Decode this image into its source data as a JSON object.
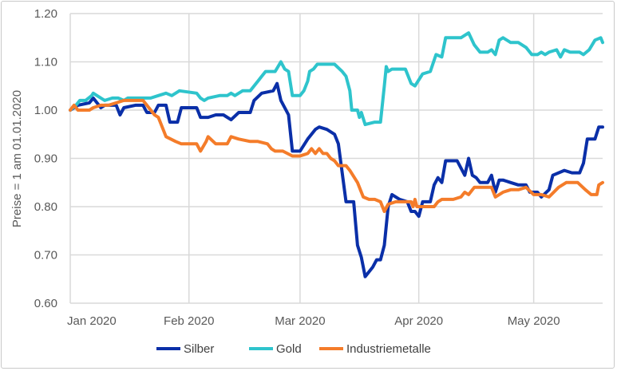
{
  "chart_data": {
    "type": "line",
    "title": "",
    "xlabel": "",
    "ylabel": "Preise = 1 am 01.01.2020",
    "x_unit": "days since 2020-01-01",
    "xlim": [
      0,
      139
    ],
    "ylim": [
      0.6,
      1.2
    ],
    "yticks": [
      0.6,
      0.7,
      0.8,
      0.9,
      1.0,
      1.1,
      1.2
    ],
    "ytick_labels": [
      "0.60",
      "0.70",
      "0.80",
      "0.90",
      "1.00",
      "1.10",
      "1.20"
    ],
    "xticks": [
      0,
      31,
      60,
      91,
      121
    ],
    "xtick_labels": [
      "Jan 2020",
      "Feb 2020",
      "Mar 2020",
      "Apr 2020",
      "May 2020"
    ],
    "grid": true,
    "legend_position": "bottom",
    "series": [
      {
        "name": "Silber",
        "color": "#0a2fa8",
        "x": [
          0,
          2,
          5,
          6,
          8,
          9,
          12,
          13,
          14,
          17,
          19,
          20,
          22,
          23,
          25,
          26,
          28,
          29,
          33,
          34,
          36,
          38,
          40,
          42,
          44,
          47,
          48,
          50,
          53,
          54,
          55,
          57,
          58,
          60,
          62,
          64,
          65,
          67,
          69,
          70,
          72,
          74,
          75,
          76,
          77,
          79,
          80,
          81,
          82,
          83,
          84,
          86,
          88,
          89,
          90,
          91,
          92,
          94,
          95,
          96,
          97,
          98,
          101,
          103,
          104,
          105,
          106,
          107,
          109,
          110,
          111,
          112,
          113,
          115,
          117,
          119,
          120,
          122,
          123,
          125,
          126,
          129,
          131,
          133,
          134,
          135,
          137,
          138,
          139
        ],
        "y": [
          1.0,
          1.01,
          1.015,
          1.025,
          1.005,
          1.01,
          1.01,
          0.99,
          1.005,
          1.01,
          1.01,
          0.995,
          0.995,
          1.01,
          1.01,
          0.975,
          0.975,
          1.005,
          1.005,
          0.985,
          0.985,
          0.99,
          0.99,
          0.98,
          0.995,
          0.995,
          1.02,
          1.035,
          1.04,
          1.055,
          1.02,
          0.99,
          0.915,
          0.915,
          0.94,
          0.96,
          0.965,
          0.96,
          0.95,
          0.93,
          0.81,
          0.81,
          0.72,
          0.695,
          0.655,
          0.675,
          0.69,
          0.69,
          0.72,
          0.8,
          0.825,
          0.815,
          0.81,
          0.79,
          0.79,
          0.78,
          0.81,
          0.81,
          0.845,
          0.86,
          0.85,
          0.895,
          0.895,
          0.865,
          0.9,
          0.865,
          0.86,
          0.85,
          0.85,
          0.865,
          0.83,
          0.855,
          0.855,
          0.85,
          0.845,
          0.845,
          0.83,
          0.83,
          0.82,
          0.835,
          0.865,
          0.875,
          0.87,
          0.87,
          0.89,
          0.94,
          0.94,
          0.965,
          0.965
        ]
      },
      {
        "name": "Gold",
        "color": "#2ec4cc",
        "x": [
          0,
          1.5,
          2.5,
          4,
          5.6,
          6,
          8,
          9,
          11,
          12.5,
          14,
          15,
          17,
          19,
          21,
          23,
          25,
          26.5,
          28.5,
          33,
          34,
          35,
          36,
          39,
          41,
          42,
          43,
          45,
          47,
          49,
          50,
          51,
          53.5,
          55,
          56,
          57,
          58,
          60,
          61,
          62,
          62.5,
          63.5,
          64.5,
          69,
          71,
          72,
          73,
          73.5,
          75,
          75.5,
          76,
          77,
          79.5,
          81,
          82,
          82.5,
          83,
          84,
          87.5,
          88,
          89,
          90,
          92,
          94,
          95.5,
          97,
          98,
          102,
          104,
          105.5,
          107,
          109,
          110,
          111,
          112,
          113,
          115,
          117,
          119,
          120.5,
          122,
          123,
          124,
          125,
          127,
          128,
          129,
          130.5,
          133,
          134,
          135.5,
          137,
          138.5,
          139
        ],
        "y": [
          1.0,
          1.01,
          1.02,
          1.02,
          1.03,
          1.035,
          1.025,
          1.02,
          1.025,
          1.025,
          1.02,
          1.025,
          1.025,
          1.025,
          1.025,
          1.03,
          1.035,
          1.03,
          1.04,
          1.035,
          1.025,
          1.02,
          1.025,
          1.03,
          1.03,
          1.035,
          1.03,
          1.04,
          1.04,
          1.06,
          1.07,
          1.08,
          1.08,
          1.1,
          1.085,
          1.08,
          1.03,
          1.03,
          1.04,
          1.06,
          1.08,
          1.085,
          1.095,
          1.095,
          1.08,
          1.07,
          1.04,
          1.0,
          1.0,
          0.985,
          0.995,
          0.97,
          0.975,
          0.975,
          1.05,
          1.09,
          1.08,
          1.085,
          1.085,
          1.075,
          1.055,
          1.05,
          1.075,
          1.08,
          1.115,
          1.11,
          1.15,
          1.15,
          1.16,
          1.135,
          1.12,
          1.12,
          1.125,
          1.115,
          1.145,
          1.15,
          1.14,
          1.14,
          1.13,
          1.115,
          1.115,
          1.12,
          1.115,
          1.12,
          1.125,
          1.11,
          1.125,
          1.12,
          1.12,
          1.115,
          1.125,
          1.145,
          1.15,
          1.14
        ]
      },
      {
        "name": "Industriemetalle",
        "color": "#f47c2a",
        "x": [
          0,
          1,
          2,
          5,
          6,
          8,
          10,
          12,
          14,
          17,
          19,
          20,
          22,
          23,
          24,
          25,
          27.5,
          29,
          33,
          34,
          35.5,
          36,
          38,
          41,
          42,
          44,
          47,
          49,
          51.5,
          52.5,
          53.5,
          55.5,
          58,
          60,
          62,
          63,
          64,
          65,
          66,
          67,
          68,
          69,
          70,
          72,
          73,
          75,
          76.5,
          78,
          79.5,
          81,
          82,
          83,
          85,
          87.5,
          89,
          89.5,
          90,
          90.5,
          92,
          95,
          96,
          97,
          100,
          102,
          103,
          104,
          105.5,
          109,
          110,
          111,
          113,
          115,
          117,
          119,
          121,
          123,
          125,
          127.5,
          129.5,
          131,
          132.5,
          134.5,
          136,
          137.5,
          138,
          139
        ],
        "y": [
          1.0,
          1.01,
          1.0,
          1.0,
          1.005,
          1.01,
          1.01,
          1.015,
          1.02,
          1.02,
          1.02,
          1.01,
          0.99,
          0.985,
          0.965,
          0.945,
          0.935,
          0.93,
          0.93,
          0.915,
          0.935,
          0.945,
          0.93,
          0.93,
          0.945,
          0.94,
          0.935,
          0.935,
          0.93,
          0.92,
          0.915,
          0.915,
          0.905,
          0.905,
          0.91,
          0.92,
          0.91,
          0.92,
          0.91,
          0.91,
          0.9,
          0.895,
          0.885,
          0.885,
          0.875,
          0.85,
          0.82,
          0.815,
          0.815,
          0.81,
          0.79,
          0.805,
          0.81,
          0.81,
          0.81,
          0.8,
          0.815,
          0.8,
          0.8,
          0.8,
          0.81,
          0.815,
          0.815,
          0.82,
          0.83,
          0.825,
          0.84,
          0.84,
          0.84,
          0.82,
          0.83,
          0.835,
          0.835,
          0.84,
          0.825,
          0.825,
          0.82,
          0.84,
          0.85,
          0.85,
          0.85,
          0.835,
          0.825,
          0.825,
          0.845,
          0.85
        ]
      }
    ]
  }
}
